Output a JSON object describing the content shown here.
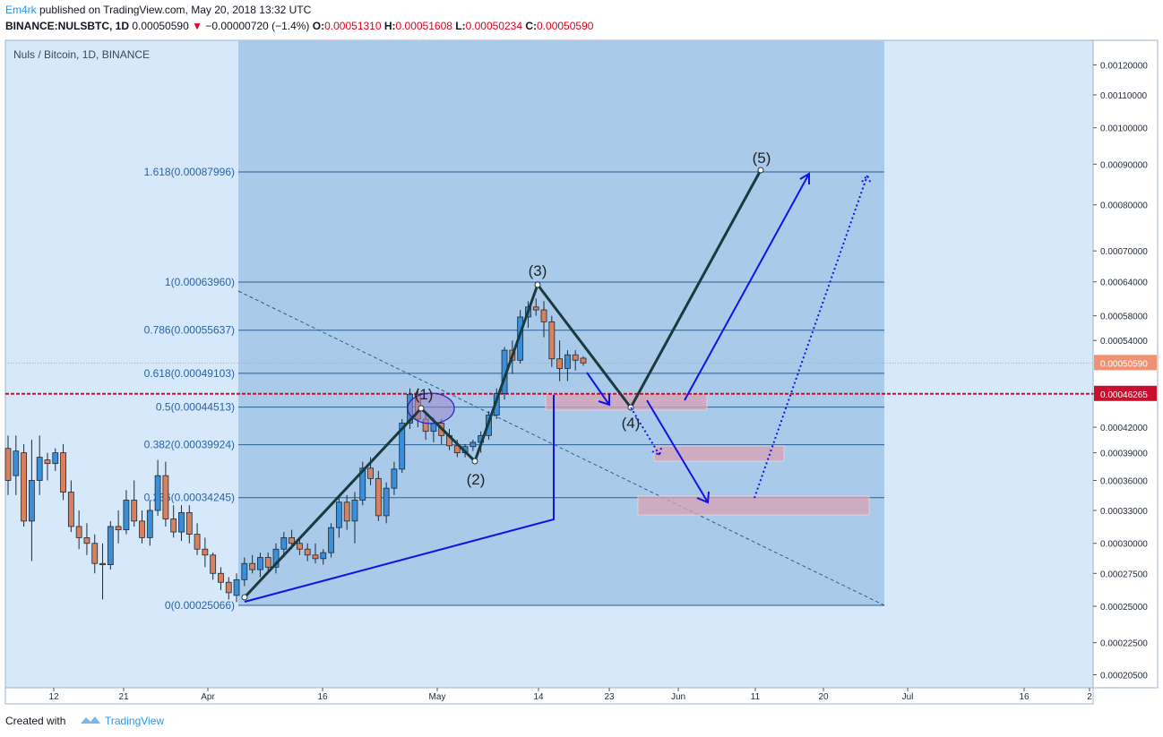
{
  "header": {
    "author": "Em4rk",
    "published": " published on TradingView.com, May 20, 2018 13:32 UTC",
    "symbol": "BINANCE:NULSBTC, 1D",
    "last": "0.00050590",
    "change": "−0.00000720 (−1.4%)",
    "o_label": "O:",
    "o_value": "0.00051310",
    "h_label": "H:",
    "h_value": "0.00051608",
    "l_label": "L:",
    "l_value": "0.00050234",
    "c_label": "C:",
    "c_value": "0.00050590"
  },
  "footer": {
    "created_with": "Created with",
    "brand": "TradingView"
  },
  "colors": {
    "chart_bg": "#d6e9fb",
    "zone_bg": "#a9cbe9",
    "up_candle": "#3c8ed6",
    "down_candle": "#d7815f",
    "fib_line": "#2c5e8e",
    "fib_label": "#2962a8",
    "wave_line": "#1a3a3e",
    "arrow_blue": "#1212e6",
    "target_box": "#d9a2b5",
    "price_tag_last": "#f09173",
    "price_tag_line": "#c8102e"
  },
  "chart_data": {
    "type": "candlestick",
    "title": "Nuls / Bitcoin, 1D, BINANCE",
    "xlabel": "",
    "ylabel": "",
    "scale": "log",
    "ylim": [
      0.000195,
      0.00127
    ],
    "x_ticks": [
      "12",
      "21",
      "Apr",
      "16",
      "May",
      "14",
      "23",
      "Jun",
      "11",
      "20",
      "Jul",
      "16",
      "2"
    ],
    "y_ticks": [
      "0.00120000",
      "0.00110000",
      "0.00100000",
      "0.00090000",
      "0.00080000",
      "0.00070000",
      "0.00064000",
      "0.00058000",
      "0.00054000",
      "0.00046265",
      "0.00042000",
      "0.00039000",
      "0.00036000",
      "0.00033000",
      "0.00030000",
      "0.00027500",
      "0.00025000",
      "0.00022500",
      "0.00020500"
    ],
    "y_tick_values": [
      0.0012,
      0.0011,
      0.001,
      0.0009,
      0.0008,
      0.0007,
      0.00064,
      0.00058,
      0.00054,
      0.00046265,
      0.00042,
      0.00039,
      0.00036,
      0.00033,
      0.0003,
      0.000275,
      0.00025,
      0.000225,
      0.000205
    ],
    "last_price": {
      "label": "0.00050590",
      "value": 0.0005059
    },
    "marked_price": {
      "label": "0.00046265",
      "value": 0.00046265
    },
    "fib_levels": [
      {
        "label": "1.618(0.00087996)",
        "value": 0.00087996
      },
      {
        "label": "1(0.00063960)",
        "value": 0.0006396
      },
      {
        "label": "0.786(0.00055637)",
        "value": 0.00055637
      },
      {
        "label": "0.618(0.00049103)",
        "value": 0.00049103
      },
      {
        "label": "0.5(0.00044513)",
        "value": 0.00044513
      },
      {
        "label": "0.382(0.00039924)",
        "value": 0.00039924
      },
      {
        "label": "0.236(0.00034245)",
        "value": 0.00034245
      },
      {
        "label": "0(0.00025066)",
        "value": 0.00025066
      }
    ],
    "candles": [
      [
        0.000395,
        0.00041,
        0.000345,
        0.00036
      ],
      [
        0.000365,
        0.00041,
        0.000345,
        0.000392
      ],
      [
        0.00039,
        0.0004,
        0.000315,
        0.00032
      ],
      [
        0.00032,
        0.000405,
        0.000285,
        0.00036
      ],
      [
        0.00036,
        0.00041,
        0.000345,
        0.000385
      ],
      [
        0.000382,
        0.00039,
        0.00036,
        0.000378
      ],
      [
        0.000378,
        0.000395,
        0.00037,
        0.00039
      ],
      [
        0.00039,
        0.0004,
        0.00034,
        0.000348
      ],
      [
        0.000348,
        0.00036,
        0.00031,
        0.000315
      ],
      [
        0.000315,
        0.00033,
        0.000295,
        0.000305
      ],
      [
        0.000305,
        0.000318,
        0.00029,
        0.0003
      ],
      [
        0.0003,
        0.000308,
        0.000275,
        0.000283
      ],
      [
        0.000283,
        0.0003,
        0.000255,
        0.000282
      ],
      [
        0.000282,
        0.00032,
        0.000278,
        0.000315
      ],
      [
        0.000315,
        0.00033,
        0.0003,
        0.000312
      ],
      [
        0.000312,
        0.00035,
        0.000308,
        0.00034
      ],
      [
        0.00034,
        0.00036,
        0.000315,
        0.00032
      ],
      [
        0.00032,
        0.00033,
        0.0003,
        0.000305
      ],
      [
        0.000305,
        0.00034,
        0.000298,
        0.00033
      ],
      [
        0.00033,
        0.000382,
        0.000325,
        0.000365
      ],
      [
        0.000365,
        0.00038,
        0.000315,
        0.000322
      ],
      [
        0.000322,
        0.000335,
        0.000305,
        0.00031
      ],
      [
        0.00031,
        0.000335,
        0.000302,
        0.000328
      ],
      [
        0.000328,
        0.000335,
        0.0003,
        0.000308
      ],
      [
        0.000308,
        0.000318,
        0.00029,
        0.000295
      ],
      [
        0.000295,
        0.000305,
        0.00028,
        0.00029
      ],
      [
        0.00029,
        0.000292,
        0.00027,
        0.000275
      ],
      [
        0.000275,
        0.00028,
        0.000262,
        0.000268
      ],
      [
        0.000268,
        0.000272,
        0.000255,
        0.00026
      ],
      [
        0.000258,
        0.000275,
        0.000253,
        0.00027
      ],
      [
        0.00027,
        0.000288,
        0.000265,
        0.000283
      ],
      [
        0.000283,
        0.00029,
        0.000275,
        0.000278
      ],
      [
        0.000278,
        0.000292,
        0.000272,
        0.000288
      ],
      [
        0.000288,
        0.000292,
        0.000275,
        0.00028
      ],
      [
        0.00028,
        0.0003,
        0.000275,
        0.000295
      ],
      [
        0.000295,
        0.00031,
        0.000288,
        0.000305
      ],
      [
        0.000305,
        0.000312,
        0.000295,
        0.0003
      ],
      [
        0.0003,
        0.000305,
        0.00029,
        0.000295
      ],
      [
        0.000295,
        0.0003,
        0.000285,
        0.00029
      ],
      [
        0.00029,
        0.0003,
        0.000283,
        0.000287
      ],
      [
        0.000287,
        0.000295,
        0.000282,
        0.000292
      ],
      [
        0.000292,
        0.000318,
        0.000288,
        0.000314
      ],
      [
        0.000314,
        0.000342,
        0.000305,
        0.000338
      ],
      [
        0.000338,
        0.000345,
        0.000312,
        0.00032
      ],
      [
        0.00032,
        0.000348,
        0.0003,
        0.00034
      ],
      [
        0.00034,
        0.00038,
        0.000335,
        0.000373
      ],
      [
        0.000373,
        0.000385,
        0.000355,
        0.000362
      ],
      [
        0.000362,
        0.00037,
        0.00032,
        0.000325
      ],
      [
        0.000325,
        0.000358,
        0.000318,
        0.000352
      ],
      [
        0.000352,
        0.00038,
        0.000345,
        0.000372
      ],
      [
        0.000372,
        0.00043,
        0.000368,
        0.000425
      ],
      [
        0.000425,
        0.00047,
        0.000418,
        0.000462
      ],
      [
        0.000462,
        0.00047,
        0.00042,
        0.00043
      ],
      [
        0.00043,
        0.00044,
        0.000405,
        0.000415
      ],
      [
        0.000415,
        0.000432,
        0.000402,
        0.000425
      ],
      [
        0.000425,
        0.00043,
        0.0004,
        0.00041
      ],
      [
        0.00041,
        0.000418,
        0.000393,
        0.000398
      ],
      [
        0.000398,
        0.000405,
        0.000385,
        0.00039
      ],
      [
        0.00039,
        0.0004,
        0.000385,
        0.000397
      ],
      [
        0.000397,
        0.000405,
        0.000392,
        0.000402
      ],
      [
        0.000402,
        0.000415,
        0.00039,
        0.00041
      ],
      [
        0.00041,
        0.00044,
        0.000405,
        0.000435
      ],
      [
        0.000435,
        0.00047,
        0.00043,
        0.000463
      ],
      [
        0.000463,
        0.00053,
        0.000455,
        0.000525
      ],
      [
        0.000525,
        0.00054,
        0.00049,
        0.00051
      ],
      [
        0.00051,
        0.00059,
        0.000505,
        0.000578
      ],
      [
        0.000578,
        0.000605,
        0.00056,
        0.000595
      ],
      [
        0.000595,
        0.00061,
        0.00058,
        0.00059
      ],
      [
        0.00059,
        0.000605,
        0.000545,
        0.00057
      ],
      [
        0.00057,
        0.00058,
        0.0005,
        0.000512
      ],
      [
        0.000512,
        0.00054,
        0.00048,
        0.000498
      ],
      [
        0.000498,
        0.000525,
        0.00048,
        0.000518
      ],
      [
        0.000518,
        0.000525,
        0.000495,
        0.00051
      ],
      [
        0.000513,
        0.000516,
        0.000502,
        0.000506
      ]
    ],
    "wave_labels": [
      "(1)",
      "(2)",
      "(3)",
      "(4)",
      "(5)"
    ]
  }
}
